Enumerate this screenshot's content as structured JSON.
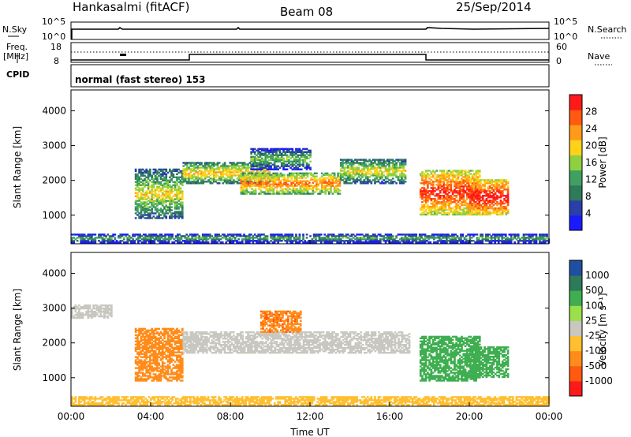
{
  "header": {
    "station": "Hankasalmi (fitACF)",
    "beam": "Beam 08",
    "date": "25/Sep/2014"
  },
  "top_panels": {
    "nsky_label": "N.Sky",
    "nsky_ticks": [
      "10^5",
      "10^0"
    ],
    "nsearch_label": "N.Search",
    "nsearch_ticks": [
      "10^5",
      "10^0"
    ],
    "freq_label_1": "Freq.",
    "freq_label_2": "[MHz]",
    "freq_ticks": [
      "18",
      "8"
    ],
    "nave_label": "Nave",
    "nave_ticks": [
      "60",
      "0"
    ],
    "cpid_label": "CPID",
    "cpid_value": "normal (fast stereo) 153"
  },
  "colors": {
    "power_scale": [
      "#1a1aff",
      "#2a3fa8",
      "#2f7a5a",
      "#3fa060",
      "#8fd040",
      "#ffd21a",
      "#ff9a1a",
      "#ff5a10",
      "#ff1a1a"
    ],
    "velocity_scale": [
      "#ff1a1a",
      "#ff5a10",
      "#ff8c1a",
      "#ffbf30",
      "#c8c8c0",
      "#9ae04a",
      "#3fae50",
      "#2f7a5a",
      "#1f4fa0"
    ],
    "ground_scatter": "#c8c8c0"
  },
  "chart_data": [
    {
      "type": "heatmap",
      "panel": "power",
      "ylabel": "Slant Range [km]",
      "xlabel": "",
      "x_ticks": [
        "00:00",
        "04:00",
        "08:00",
        "12:00",
        "16:00",
        "20:00",
        "00:00"
      ],
      "xlim_hours": [
        0,
        24
      ],
      "y_ticks": [
        1000,
        2000,
        3000,
        4000
      ],
      "ylim_km": [
        180,
        4600
      ],
      "colorbar_label": "Power [dB]",
      "colorbar_ticks": [
        "4",
        "8",
        "12",
        "16",
        "20",
        "24",
        "28"
      ],
      "colorbar_range": [
        0,
        32
      ],
      "echo_regions": [
        {
          "t_start": 3.2,
          "t_end": 5.6,
          "r_low": 900,
          "r_high": 2300,
          "value": 14
        },
        {
          "t_start": 5.6,
          "t_end": 10.0,
          "r_low": 1900,
          "r_high": 2500,
          "value": 16
        },
        {
          "t_start": 8.5,
          "t_end": 13.5,
          "r_low": 1600,
          "r_high": 2200,
          "value": 20
        },
        {
          "t_start": 9.0,
          "t_end": 12.0,
          "r_low": 2300,
          "r_high": 2900,
          "value": 10
        },
        {
          "t_start": 13.5,
          "t_end": 16.8,
          "r_low": 1900,
          "r_high": 2600,
          "value": 14
        },
        {
          "t_start": 17.5,
          "t_end": 20.5,
          "r_low": 1000,
          "r_high": 2300,
          "value": 24
        },
        {
          "t_start": 20.0,
          "t_end": 21.9,
          "r_low": 1000,
          "r_high": 2000,
          "value": 26
        },
        {
          "t_start": 0.0,
          "t_end": 24.0,
          "r_low": 200,
          "r_high": 450,
          "value": 8
        }
      ]
    },
    {
      "type": "heatmap",
      "panel": "velocity",
      "ylabel": "Slant Range [km]",
      "xlabel": "Time UT",
      "x_ticks": [
        "00:00",
        "04:00",
        "08:00",
        "12:00",
        "16:00",
        "20:00",
        "00:00"
      ],
      "xlim_hours": [
        0,
        24
      ],
      "y_ticks": [
        1000,
        2000,
        3000,
        4000
      ],
      "ylim_km": [
        180,
        4600
      ],
      "colorbar_label": "Velocity [m s⁻¹]",
      "colorbar_ticks": [
        "1000",
        "500",
        "100",
        "25",
        "-25",
        "-100",
        "-500",
        "-1000"
      ],
      "echo_regions": [
        {
          "t_start": 0.0,
          "t_end": 2.0,
          "r_low": 2700,
          "r_high": 3100,
          "value": "ground_scatter"
        },
        {
          "t_start": 3.2,
          "t_end": 5.6,
          "r_low": 900,
          "r_high": 2400,
          "value": -300
        },
        {
          "t_start": 5.6,
          "t_end": 17.0,
          "r_low": 1700,
          "r_high": 2300,
          "value": "ground_scatter"
        },
        {
          "t_start": 9.5,
          "t_end": 11.5,
          "r_low": 2300,
          "r_high": 2900,
          "value": -400
        },
        {
          "t_start": 17.5,
          "t_end": 20.5,
          "r_low": 900,
          "r_high": 2200,
          "value": 300
        },
        {
          "t_start": 20.0,
          "t_end": 21.9,
          "r_low": 1000,
          "r_high": 1900,
          "value": 350
        },
        {
          "t_start": 0.0,
          "t_end": 24.0,
          "r_low": 200,
          "r_high": 450,
          "value": -60
        }
      ]
    }
  ]
}
